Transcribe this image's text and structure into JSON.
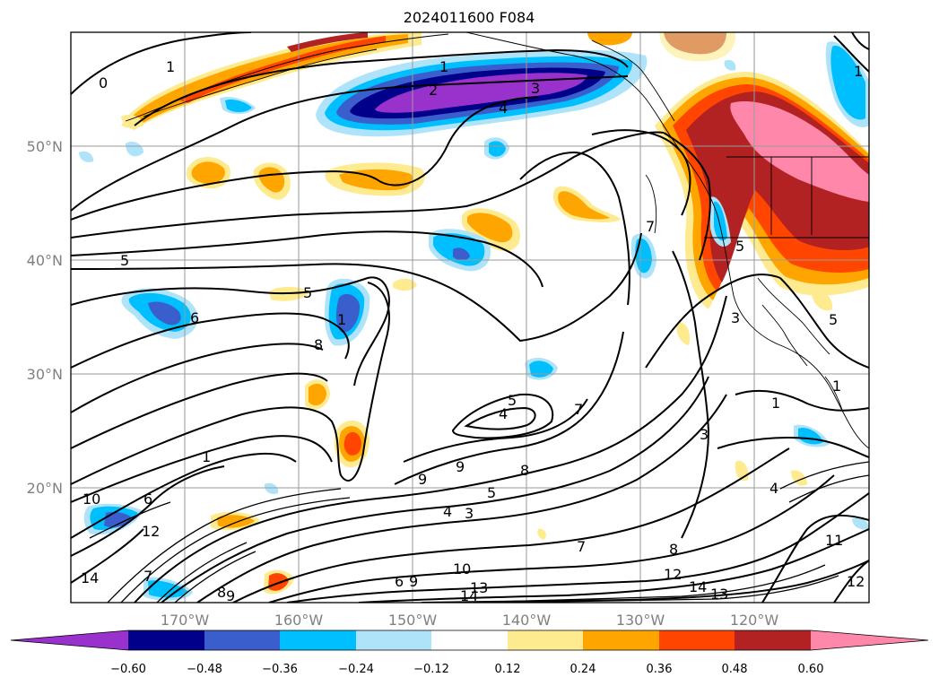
{
  "title": "2024011600 F084",
  "lat_labels": [
    "50°N",
    "40°N",
    "30°N",
    "20°N"
  ],
  "lon_labels": [
    "170°W",
    "160°W",
    "150°W",
    "140°W",
    "130°W",
    "120°W"
  ],
  "colorbar": {
    "ticks": [
      "−0.60",
      "−0.48",
      "−0.36",
      "−0.24",
      "−0.12",
      "0.12",
      "0.24",
      "0.36",
      "0.48",
      "0.60"
    ],
    "colors": [
      "#9932cc",
      "#00008b",
      "#3a5fcd",
      "#00bfff",
      "#aee3fa",
      "#ffffff",
      "#ffeb8f",
      "#ffa500",
      "#ff4500",
      "#b22222",
      "#ff88aa"
    ]
  },
  "colors": {
    "purple": "#9932cc",
    "navy": "#00008b",
    "royal": "#3a5fcd",
    "sky": "#00bfff",
    "lightblue": "#aee3fa",
    "lightyellow": "#ffeb8f",
    "orange": "#ffa500",
    "redorange": "#ff4500",
    "firebrick": "#b22222",
    "pink": "#ff88aa"
  },
  "contour_labels": [
    {
      "text": "0"
    },
    {
      "text": "1"
    },
    {
      "text": "1"
    },
    {
      "text": "2"
    },
    {
      "text": "3"
    },
    {
      "text": "4"
    },
    {
      "text": "5"
    },
    {
      "text": "5"
    },
    {
      "text": "6"
    },
    {
      "text": "1"
    },
    {
      "text": "8"
    },
    {
      "text": "5"
    },
    {
      "text": "4"
    },
    {
      "text": "7"
    },
    {
      "text": "9"
    },
    {
      "text": "9"
    },
    {
      "text": "8"
    },
    {
      "text": "5"
    },
    {
      "text": "4"
    },
    {
      "text": "3"
    },
    {
      "text": "10"
    },
    {
      "text": "6"
    },
    {
      "text": "12"
    },
    {
      "text": "14"
    },
    {
      "text": "7"
    },
    {
      "text": "8"
    },
    {
      "text": "9"
    },
    {
      "text": "6"
    },
    {
      "text": "9"
    },
    {
      "text": "10"
    },
    {
      "text": "13"
    },
    {
      "text": "14"
    },
    {
      "text": "7"
    },
    {
      "text": "8"
    },
    {
      "text": "12"
    },
    {
      "text": "14"
    },
    {
      "text": "13"
    },
    {
      "text": "3"
    },
    {
      "text": "1"
    },
    {
      "text": "1"
    },
    {
      "text": "5"
    },
    {
      "text": "4"
    },
    {
      "text": "11"
    },
    {
      "text": "12"
    },
    {
      "text": "5"
    },
    {
      "text": "1"
    },
    {
      "text": "3"
    },
    {
      "text": "7"
    },
    {
      "text": "1"
    }
  ]
}
